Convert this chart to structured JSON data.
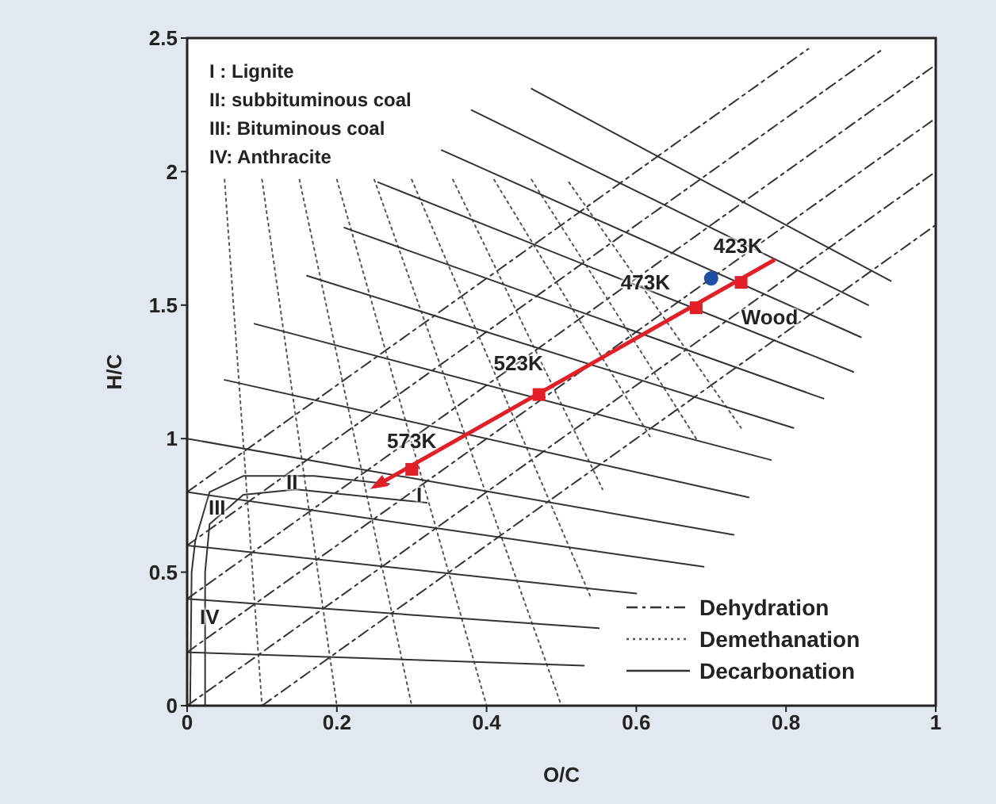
{
  "chart_data": {
    "type": "line",
    "xlabel": "O/C",
    "ylabel": "H/C",
    "xlim": [
      0,
      1
    ],
    "ylim": [
      0,
      2.5
    ],
    "xticks": [
      0,
      0.2,
      0.4,
      0.6,
      0.8,
      1
    ],
    "yticks": [
      0,
      0.5,
      1,
      1.5,
      2,
      2.5
    ],
    "legend": "bottom right",
    "series": [
      {
        "name": "Dehydration",
        "color": "#333333",
        "line_style": "dashed",
        "x": [
          0,
          0.83
        ],
        "values": [
          0.8,
          2.46
        ]
      },
      {
        "color": "#333333",
        "line_style": "dashed",
        "x": [
          0,
          0.93
        ],
        "values": [
          0.6,
          2.46
        ]
      },
      {
        "color": "#333333",
        "line_style": "dashed",
        "x": [
          0,
          1
        ],
        "values": [
          0.4,
          2.4
        ]
      },
      {
        "color": "#333333",
        "line_style": "dashed",
        "x": [
          0,
          1
        ],
        "values": [
          0.2,
          2.2
        ]
      },
      {
        "color": "#333333",
        "line_style": "dashed",
        "x": [
          0,
          1
        ],
        "values": [
          0,
          2.0
        ]
      },
      {
        "color": "#333333",
        "line_style": "dashed",
        "x": [
          0.1,
          1
        ],
        "values": [
          0,
          1.8
        ]
      },
      {
        "name": "Demethanation",
        "color": "#555555",
        "line_style": "dotted",
        "x": [
          0.05,
          0.1
        ],
        "values": [
          1.97,
          0
        ]
      },
      {
        "color": "#555555",
        "line_style": "dotted",
        "x": [
          0.1,
          0.2
        ],
        "values": [
          1.97,
          0
        ]
      },
      {
        "color": "#555555",
        "line_style": "dotted",
        "x": [
          0.15,
          0.3
        ],
        "values": [
          1.97,
          0
        ]
      },
      {
        "color": "#555555",
        "line_style": "dotted",
        "x": [
          0.2,
          0.4
        ],
        "values": [
          1.97,
          0
        ]
      },
      {
        "color": "#555555",
        "line_style": "dotted",
        "x": [
          0.25,
          0.5
        ],
        "values": [
          1.97,
          0
        ]
      },
      {
        "color": "#555555",
        "line_style": "dotted",
        "x": [
          0.3,
          0.54
        ],
        "values": [
          1.97,
          0.4
        ]
      },
      {
        "color": "#555555",
        "line_style": "dotted",
        "x": [
          0.355,
          0.555
        ],
        "values": [
          1.97,
          0.81
        ]
      },
      {
        "color": "#555555",
        "line_style": "dotted",
        "x": [
          0.41,
          0.62
        ],
        "values": [
          1.97,
          1.0
        ]
      },
      {
        "color": "#555555",
        "line_style": "dotted",
        "x": [
          0.46,
          0.68
        ],
        "values": [
          1.97,
          1.0
        ]
      },
      {
        "color": "#555555",
        "line_style": "dotted",
        "x": [
          0.51,
          0.74
        ],
        "values": [
          1.96,
          1.04
        ]
      },
      {
        "name": "Decarbonation",
        "color": "#333333",
        "line_style": "solid",
        "x": [
          0,
          0.53
        ],
        "values": [
          0.2,
          0.15
        ]
      },
      {
        "color": "#333333",
        "line_style": "solid",
        "x": [
          0,
          0.55
        ],
        "values": [
          0.4,
          0.29
        ]
      },
      {
        "color": "#333333",
        "line_style": "solid",
        "x": [
          0,
          0.6
        ],
        "values": [
          0.6,
          0.42
        ]
      },
      {
        "color": "#333333",
        "line_style": "solid",
        "x": [
          0,
          0.69
        ],
        "values": [
          0.8,
          0.52
        ]
      },
      {
        "color": "#333333",
        "line_style": "solid",
        "x": [
          0,
          0.73
        ],
        "values": [
          1.0,
          0.64
        ]
      },
      {
        "color": "#333333",
        "line_style": "solid",
        "x": [
          0.05,
          0.75
        ],
        "values": [
          1.22,
          0.78
        ]
      },
      {
        "color": "#333333",
        "line_style": "solid",
        "x": [
          0.09,
          0.78
        ],
        "values": [
          1.43,
          0.92
        ]
      },
      {
        "color": "#333333",
        "line_style": "solid",
        "x": [
          0.16,
          0.81
        ],
        "values": [
          1.61,
          1.04
        ]
      },
      {
        "color": "#333333",
        "line_style": "solid",
        "x": [
          0.21,
          0.85
        ],
        "values": [
          1.79,
          1.15
        ]
      },
      {
        "color": "#333333",
        "line_style": "solid",
        "x": [
          0.255,
          0.89
        ],
        "values": [
          1.96,
          1.25
        ]
      },
      {
        "color": "#333333",
        "line_style": "solid",
        "x": [
          0.34,
          0.9
        ],
        "values": [
          2.08,
          1.38
        ]
      },
      {
        "color": "#333333",
        "line_style": "solid",
        "x": [
          0.38,
          0.91
        ],
        "values": [
          2.23,
          1.5
        ]
      },
      {
        "color": "#333333",
        "line_style": "solid",
        "x": [
          0.46,
          0.94
        ],
        "values": [
          2.31,
          1.59
        ]
      },
      {
        "color": "#333333",
        "line_style": "solid",
        "x": [
          0.004,
          0.006,
          0.011,
          0.03,
          0.075,
          0.17,
          0.27
        ],
        "values": [
          0,
          0.5,
          0.62,
          0.8,
          0.86,
          0.86,
          0.83
        ]
      },
      {
        "color": "#333333",
        "line_style": "solid",
        "x": [
          0.024,
          0.024,
          0.03,
          0.075,
          0.146,
          0.32
        ],
        "values": [
          0,
          0.5,
          0.68,
          0.79,
          0.81,
          0.76
        ]
      },
      {
        "color": "#e41e26",
        "line_style": "solid",
        "marker": "none",
        "x": [
          0.25,
          0.785
        ],
        "values": [
          0.82,
          1.67
        ]
      },
      {
        "type": "scatter",
        "color": "#e41e26",
        "marker": "square",
        "x": [
          0.3,
          0.47,
          0.68,
          0.74
        ],
        "values": [
          0.885,
          1.165,
          1.49,
          1.585
        ]
      },
      {
        "type": "scatter",
        "color": "#1f4fa0",
        "marker": "circle",
        "x": [
          0.7
        ],
        "values": [
          1.6
        ]
      }
    ],
    "annotations": [
      "I : Lignite",
      "II: subbituminous coal",
      "III: Bituminous coal",
      "IV: Anthracite",
      {
        "text": "573K",
        "x": 0.3,
        "y": 0.885
      },
      {
        "text": "523K",
        "x": 0.47,
        "y": 1.165
      },
      {
        "text": "473K",
        "x": 0.68,
        "y": 1.49
      },
      {
        "text": "423K",
        "x": 0.7,
        "y": 1.6
      },
      {
        "text": "Wood",
        "x": 0.74,
        "y": 1.585
      },
      {
        "text": "I",
        "x": 0.31,
        "y": 0.79
      },
      {
        "text": "II",
        "x": 0.14,
        "y": 0.84
      },
      {
        "text": "III",
        "x": 0.04,
        "y": 0.74
      },
      {
        "text": "IV",
        "x": 0.03,
        "y": 0.33
      }
    ]
  }
}
